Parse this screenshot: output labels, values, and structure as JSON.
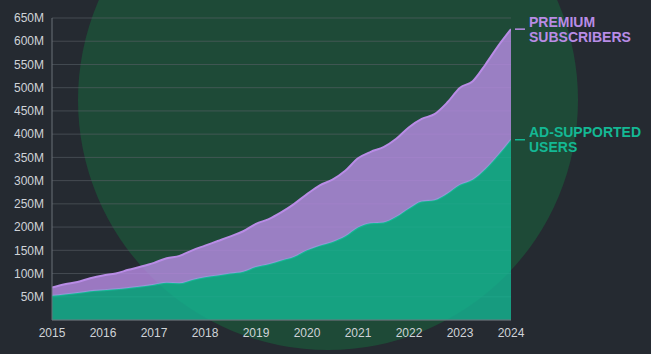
{
  "chart_data": {
    "type": "area",
    "stacked": true,
    "grid": true,
    "x": [
      2015,
      2015.25,
      2015.5,
      2015.75,
      2016,
      2016.25,
      2016.5,
      2016.75,
      2017,
      2017.25,
      2017.5,
      2017.75,
      2018,
      2018.25,
      2018.5,
      2018.75,
      2019,
      2019.25,
      2019.5,
      2019.75,
      2020,
      2020.25,
      2020.5,
      2020.75,
      2021,
      2021.25,
      2021.5,
      2021.75,
      2022,
      2022.25,
      2022.5,
      2022.75,
      2023,
      2023.25,
      2023.5,
      2023.75,
      2024
    ],
    "xlim": [
      2015,
      2024
    ],
    "xticks": [
      2015,
      2016,
      2017,
      2018,
      2019,
      2020,
      2021,
      2022,
      2023,
      2024
    ],
    "ylim": [
      0,
      650
    ],
    "yticks": [
      {
        "value": 50,
        "label": "50M"
      },
      {
        "value": 100,
        "label": "100M"
      },
      {
        "value": 150,
        "label": "150M"
      },
      {
        "value": 200,
        "label": "200M"
      },
      {
        "value": 250,
        "label": "250M"
      },
      {
        "value": 300,
        "label": "300M"
      },
      {
        "value": 350,
        "label": "350M"
      },
      {
        "value": 400,
        "label": "400M"
      },
      {
        "value": 450,
        "label": "450M"
      },
      {
        "value": 500,
        "label": "500M"
      },
      {
        "value": 550,
        "label": "550M"
      },
      {
        "value": 600,
        "label": "600M"
      },
      {
        "value": 650,
        "label": "650M"
      }
    ],
    "series": [
      {
        "name": "AD-SUPPORTED USERS",
        "color": "#14b894",
        "values": [
          52,
          55,
          58,
          62,
          64,
          66,
          69,
          72,
          76,
          80,
          79,
          86,
          92,
          96,
          100,
          104,
          114,
          120,
          128,
          136,
          150,
          160,
          168,
          180,
          199,
          208,
          210,
          222,
          240,
          255,
          258,
          272,
          291,
          302,
          325,
          355,
          388
        ]
      },
      {
        "name": "PREMIUM SUBSCRIBERS",
        "color": "#b98ce6",
        "values": [
          18,
          22,
          24,
          28,
          32,
          34,
          39,
          43,
          47,
          53,
          59,
          64,
          68,
          74,
          80,
          87,
          93,
          97,
          104,
          114,
          121,
          130,
          134,
          141,
          149,
          154,
          162,
          168,
          175,
          178,
          185,
          196,
          209,
          212,
          225,
          235,
          238
        ]
      }
    ]
  }
}
